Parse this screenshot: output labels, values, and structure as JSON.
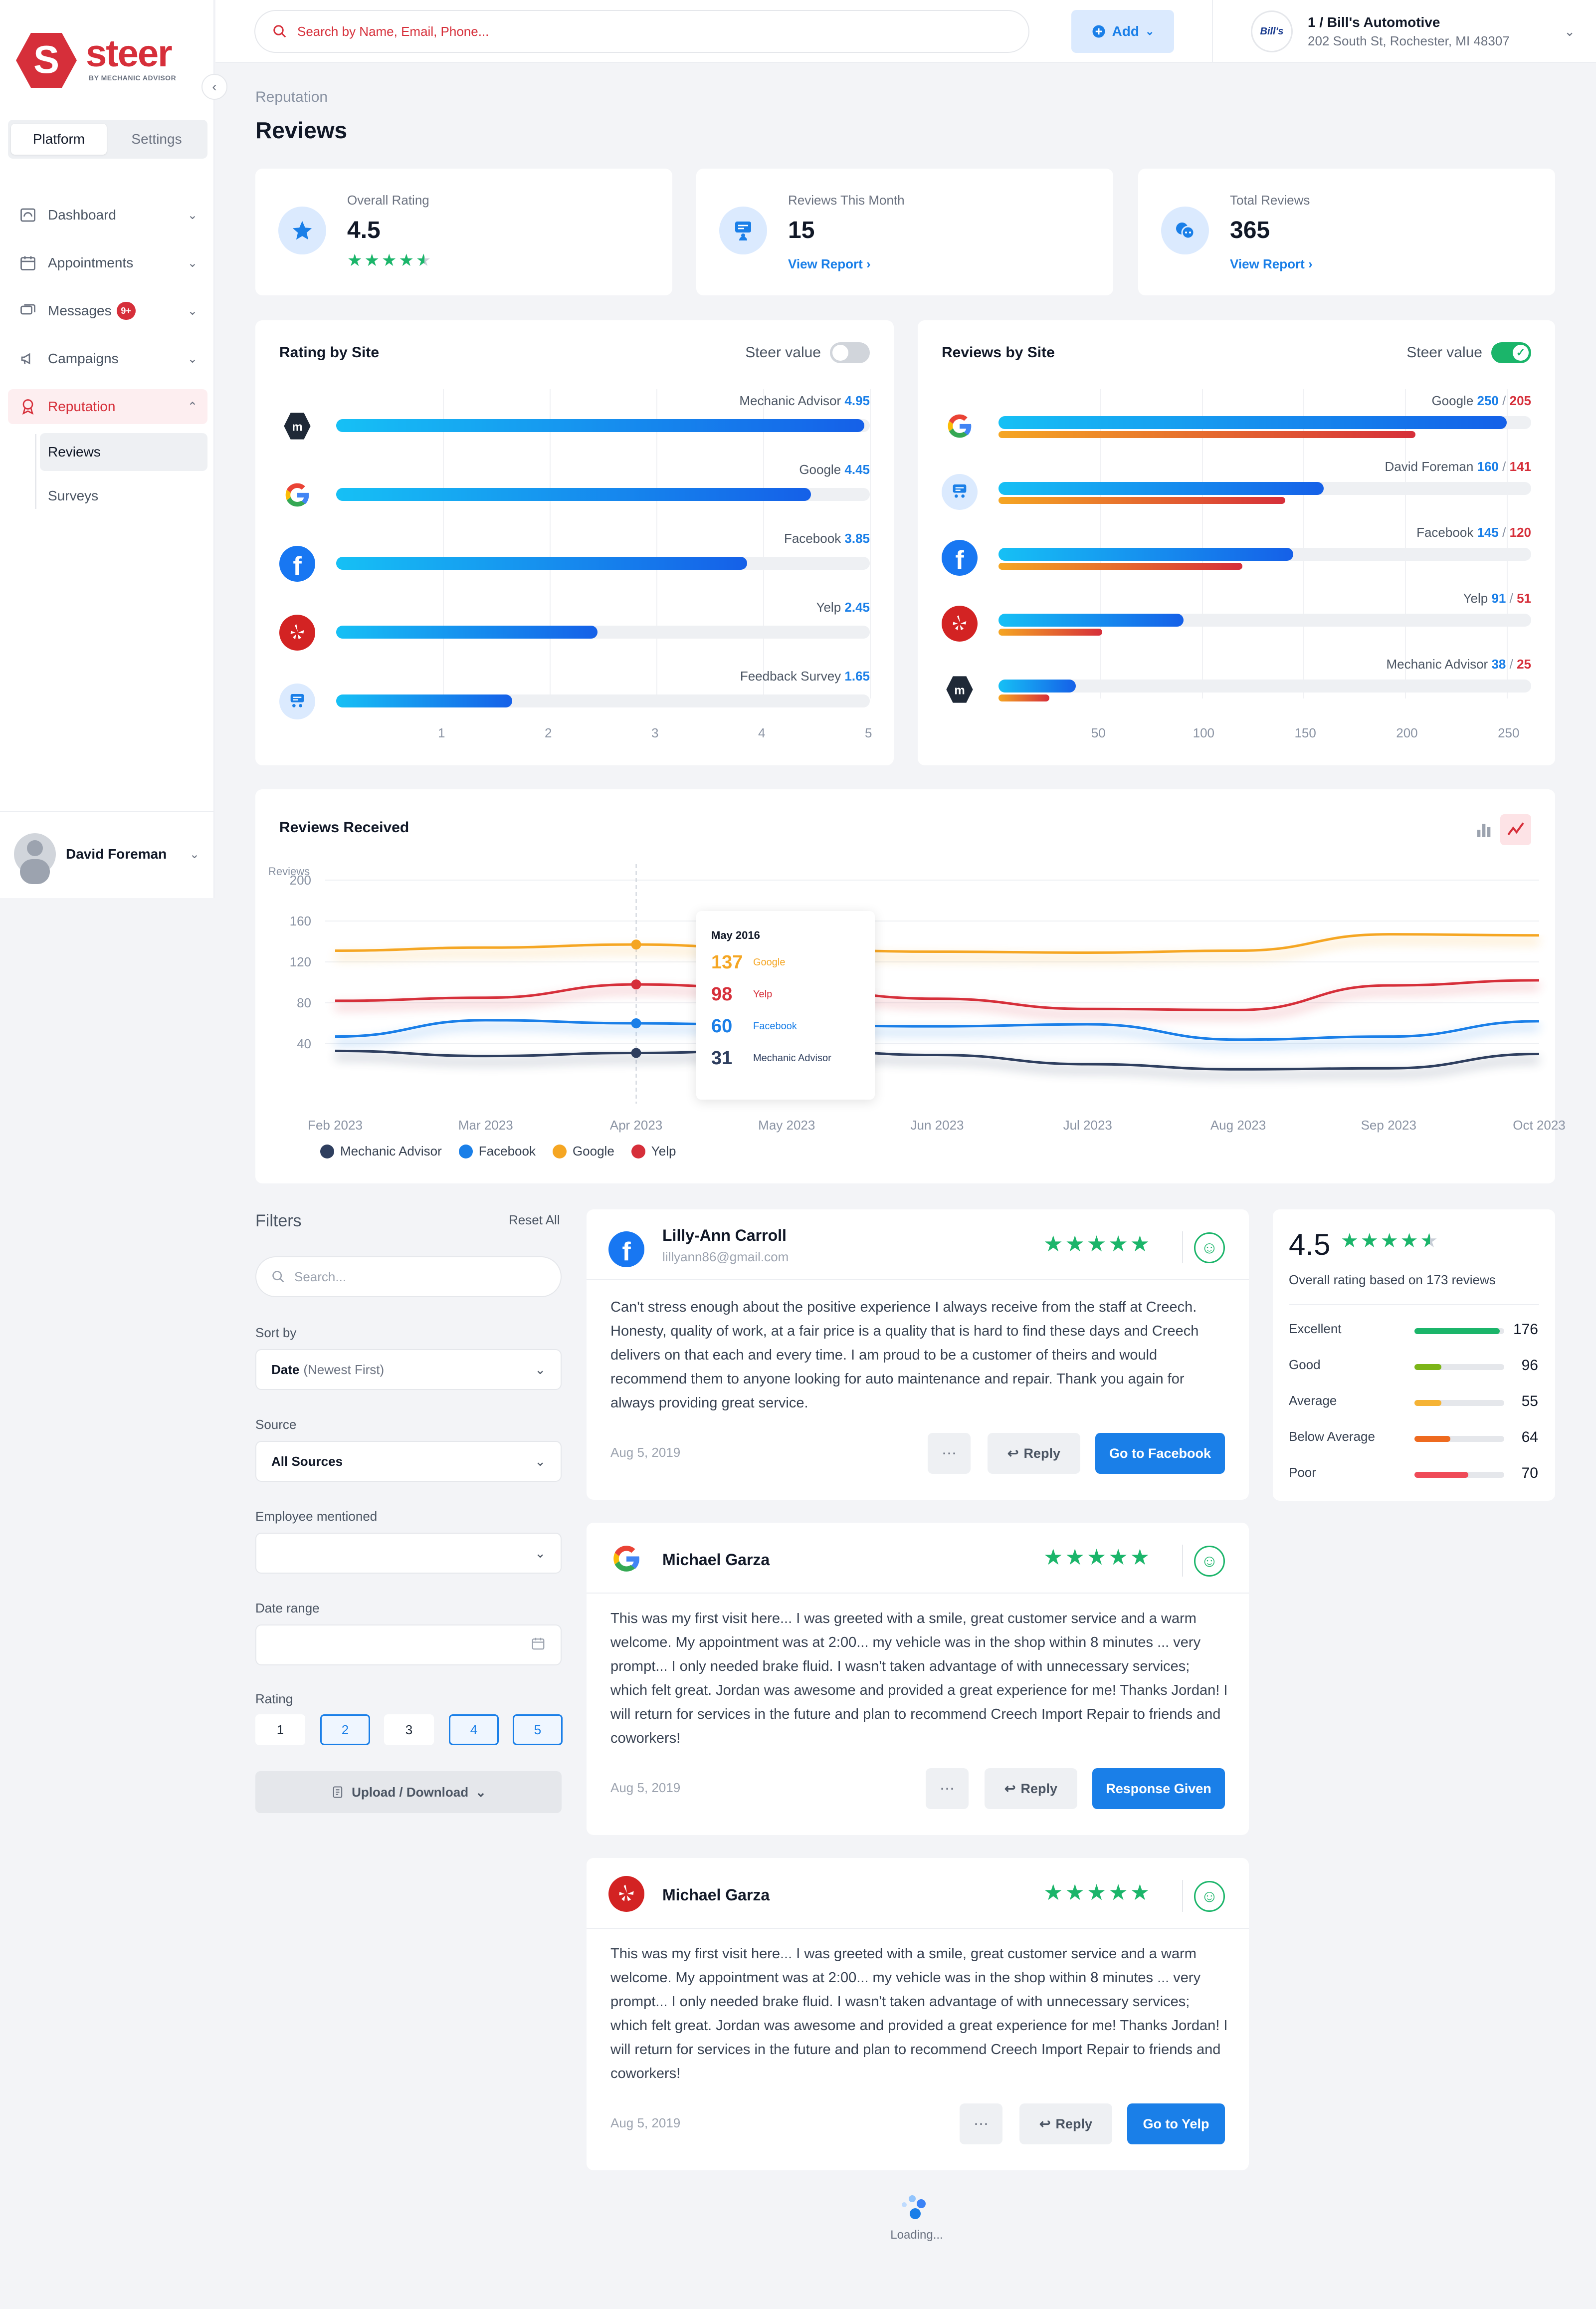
{
  "brand": {
    "name": "steer",
    "tagline": "BY MECHANIC ADVISOR"
  },
  "sidebar": {
    "tabs": [
      "Platform",
      "Settings"
    ],
    "items": [
      {
        "label": "Dashboard",
        "icon": "dashboard-icon"
      },
      {
        "label": "Appointments",
        "icon": "calendar-icon"
      },
      {
        "label": "Messages",
        "icon": "messages-icon",
        "badge": "9+"
      },
      {
        "label": "Campaigns",
        "icon": "megaphone-icon"
      },
      {
        "label": "Reputation",
        "icon": "award-icon"
      }
    ],
    "sub_items": [
      "Reviews",
      "Surveys"
    ],
    "user": "David Foreman"
  },
  "topbar": {
    "search_placeholder": "Search by Name, Email, Phone...",
    "add_label": "Add",
    "shop_logo_text": "Bill's",
    "shop_name": "1 / Bill's Automotive",
    "shop_address": "202 South St, Rochester, MI 48307"
  },
  "page": {
    "breadcrumb": "Reputation",
    "title": "Reviews"
  },
  "stats": [
    {
      "label": "Overall Rating",
      "value": "4.5",
      "rating": 4.5
    },
    {
      "label": "Reviews This Month",
      "value": "15",
      "link": "View Report"
    },
    {
      "label": "Total Reviews",
      "value": "365",
      "link": "View Report"
    }
  ],
  "rating_by_site": {
    "title": "Rating by Site",
    "toggle_label": "Steer value",
    "toggle_on": false,
    "sites": [
      {
        "name": "Mechanic Advisor",
        "value": "4.95",
        "icon": "mechanic-advisor-icon"
      },
      {
        "name": "Google",
        "value": "4.45",
        "icon": "google-icon"
      },
      {
        "name": "Facebook",
        "value": "3.85",
        "icon": "facebook-icon"
      },
      {
        "name": "Yelp",
        "value": "2.45",
        "icon": "yelp-icon"
      },
      {
        "name": "Feedback Survey",
        "value": "1.65",
        "icon": "feedback-survey-icon"
      }
    ],
    "ticks": [
      "1",
      "2",
      "3",
      "4",
      "5"
    ]
  },
  "reviews_by_site": {
    "title": "Reviews by Site",
    "toggle_label": "Steer value",
    "toggle_on": true,
    "sites": [
      {
        "name": "Google",
        "a": "250",
        "b": "205",
        "icon": "google-icon"
      },
      {
        "name": "David Foreman",
        "a": "160",
        "b": "141",
        "icon": "feedback-survey-icon"
      },
      {
        "name": "Facebook",
        "a": "145",
        "b": "120",
        "icon": "facebook-icon"
      },
      {
        "name": "Yelp",
        "a": "91",
        "b": "51",
        "icon": "yelp-icon"
      },
      {
        "name": "Mechanic Advisor",
        "a": "38",
        "b": "25",
        "icon": "mechanic-advisor-icon"
      }
    ],
    "separator": "/",
    "ticks": [
      "50",
      "100",
      "150",
      "200",
      "250"
    ]
  },
  "chart_data": {
    "type": "line",
    "title": "Reviews Received",
    "ylabel": "Reviews",
    "ylim": [
      0,
      220
    ],
    "yticks": [
      "200",
      "160",
      "120",
      "80",
      "40"
    ],
    "x": [
      "Feb 2023",
      "Mar 2023",
      "Apr 2023",
      "May 2023",
      "Jun 2023",
      "Jul 2023",
      "Aug 2023",
      "Sep 2023",
      "Oct 2023"
    ],
    "series": [
      {
        "name": "Google",
        "color": "#f5a623",
        "values": [
          131,
          134,
          137,
          132,
          130,
          129,
          131,
          147,
          146
        ]
      },
      {
        "name": "Yelp",
        "color": "#d62f3a",
        "values": [
          82,
          85,
          98,
          93,
          84,
          74,
          73,
          97,
          102
        ]
      },
      {
        "name": "Facebook",
        "color": "#1a7fe8",
        "values": [
          47,
          63,
          60,
          58,
          57,
          59,
          44,
          47,
          62
        ]
      },
      {
        "name": "Mechanic Advisor",
        "color": "#2f3f5f",
        "values": [
          33,
          28,
          31,
          34,
          29,
          20,
          15,
          16,
          30
        ]
      }
    ],
    "legend": [
      "Mechanic Advisor",
      "Facebook",
      "Google",
      "Yelp"
    ],
    "legend_position": "bottom-left",
    "tooltip": {
      "title": "May 2016",
      "rows": [
        {
          "value": "137",
          "name": "Google",
          "color": "#f5a623"
        },
        {
          "value": "98",
          "name": "Yelp",
          "color": "#d62f3a"
        },
        {
          "value": "60",
          "name": "Facebook",
          "color": "#1a7fe8"
        },
        {
          "value": "31",
          "name": "Mechanic Advisor",
          "color": "#2f3f5f"
        }
      ]
    }
  },
  "filters": {
    "title": "Filters",
    "reset": "Reset All",
    "search_placeholder": "Search...",
    "sort_label": "Sort by",
    "sort_value": "Date",
    "sort_hint": "(Newest First)",
    "source_label": "Source",
    "source_value": "All Sources",
    "employee_label": "Employee mentioned",
    "date_label": "Date range",
    "rating_label": "Rating",
    "ratings": [
      "1",
      "2",
      "3",
      "4",
      "5"
    ],
    "upload_label": "Upload / Download"
  },
  "reviews": [
    {
      "name": "Lilly-Ann Carroll",
      "email": "lillyann86@gmail.com",
      "source": "facebook-icon",
      "stars": "★★★★★",
      "text": "Can't stress enough about the positive experience I always receive from the staff at Creech. Honesty, quality of work, at a fair price is a quality that is hard to find these days and Creech delivers on that each and every time. I am proud to be a customer of theirs and would recommend them to anyone looking for auto maintenance and repair. Thank you again for always providing great service.",
      "date": "Aug 5, 2019",
      "reply": "Reply",
      "action": "Go to Facebook"
    },
    {
      "name": "Michael Garza",
      "email": "",
      "source": "google-icon",
      "stars": "★★★★★",
      "text": "This was my first visit here... I was greeted with a smile, great customer service and a warm welcome. My appointment was at 2:00... my vehicle was in the shop within 8 minutes ... very prompt... I only needed brake fluid. I wasn't taken advantage of with unnecessary services; which felt great. Jordan was awesome and provided a great experience for me! Thanks Jordan! I will return for services in the future and plan to recommend Creech Import Repair to friends and coworkers!",
      "date": "Aug 5, 2019",
      "reply": "Reply",
      "action": "Response Given"
    },
    {
      "name": "Michael Garza",
      "email": "",
      "source": "yelp-icon",
      "stars": "★★★★★",
      "text": "This was my first visit here... I was greeted with a smile, great customer service and a warm welcome. My appointment was at 2:00... my vehicle was in the shop within 8 minutes ... very prompt... I only needed brake fluid. I wasn't taken advantage of with unnecessary services; which felt great. Jordan was awesome and provided a great experience for me! Thanks Jordan! I will return for services in the future and plan to recommend Creech Import Repair to friends and coworkers!",
      "date": "Aug 5, 2019",
      "reply": "Reply",
      "action": "Go to Yelp"
    }
  ],
  "summary": {
    "score": "4.5",
    "caption": "Overall rating based on 173 reviews",
    "rows": [
      {
        "label": "Excellent",
        "count": "176",
        "fraction": 0.95,
        "color": "#1bb56a"
      },
      {
        "label": "Good",
        "count": "96",
        "fraction": 0.3,
        "color": "#7cb518"
      },
      {
        "label": "Average",
        "count": "55",
        "fraction": 0.3,
        "color": "#f5b335"
      },
      {
        "label": "Below Average",
        "count": "64",
        "fraction": 0.4,
        "color": "#ee6a1f"
      },
      {
        "label": "Poor",
        "count": "70",
        "fraction": 0.6,
        "color": "#ef4b58"
      }
    ]
  },
  "loading_label": "Loading..."
}
